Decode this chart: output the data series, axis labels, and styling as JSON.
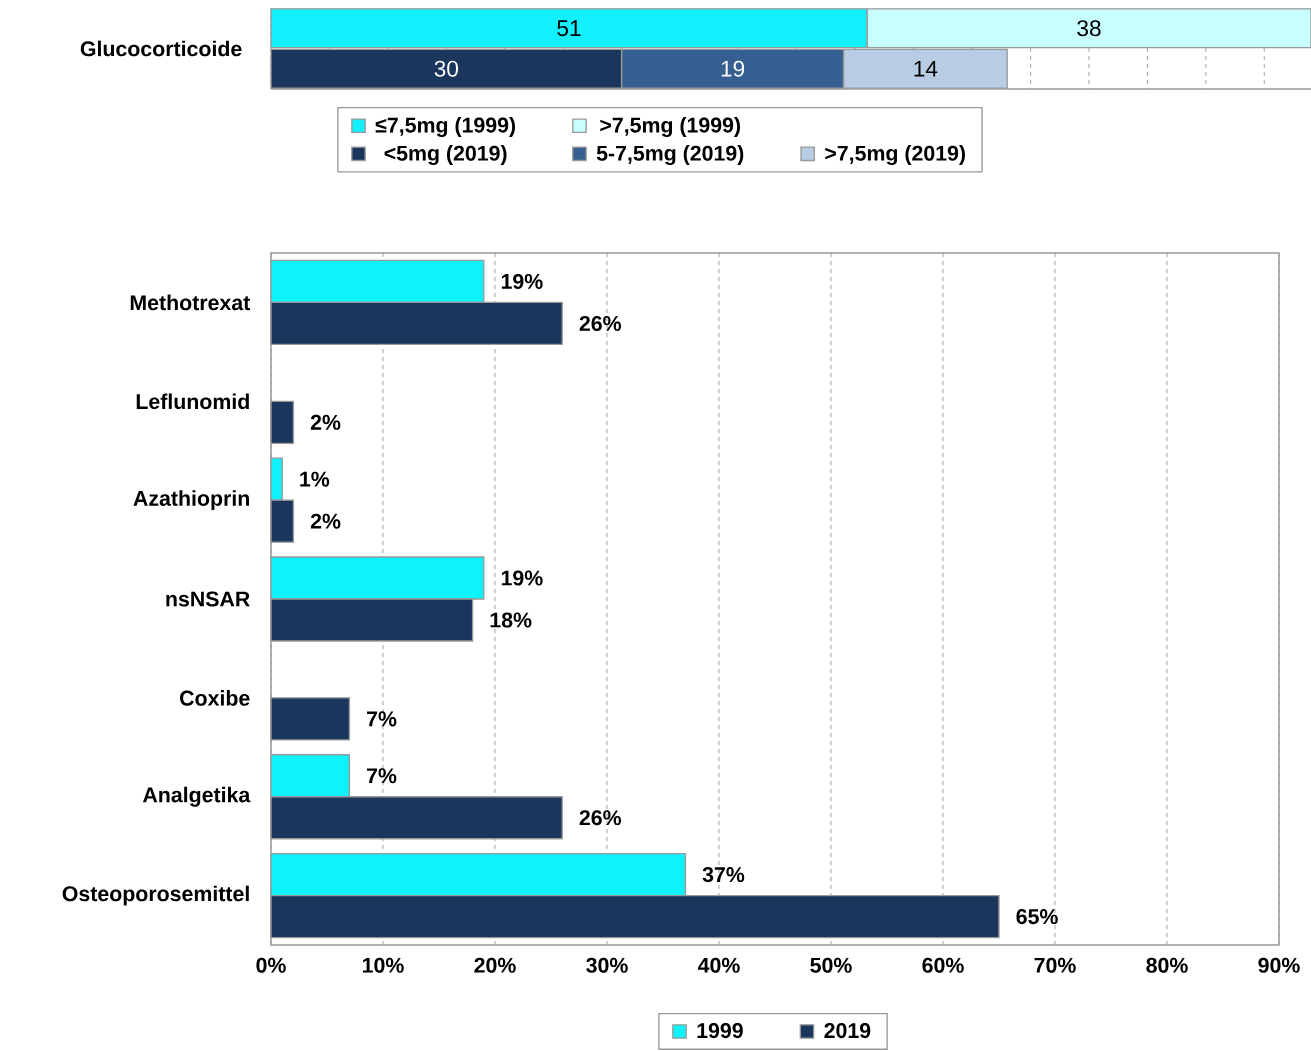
{
  "chart_data": [
    {
      "type": "bar",
      "orientation": "horizontal",
      "stacked": true,
      "ylabel": "Glucocorticoide",
      "categories": [
        null,
        null
      ],
      "series": [
        {
          "name": "≤7,5mg (1999)",
          "color": "#12f0fd",
          "values": [
            51,
            null
          ]
        },
        {
          "name": ">7,5mg (1999)",
          "color": "#c8ffff",
          "values": [
            38,
            null
          ]
        },
        {
          "name": "<5mg (2019)",
          "color": "#1a365d",
          "values": [
            null,
            30
          ]
        },
        {
          "name": "5-7,5mg (2019)",
          "color": "#365f91",
          "values": [
            null,
            19
          ]
        },
        {
          "name": ">7,5mg (2019)",
          "color": "#b8cce4",
          "values": [
            null,
            14
          ]
        }
      ],
      "grid": "x",
      "legend": "bottom",
      "data_labels": true,
      "tick_labels": false
    },
    {
      "type": "bar",
      "orientation": "horizontal",
      "categories": [
        "Methotrexat",
        "Leflunomid",
        "Azathioprin",
        "nsNSAR",
        "Coxibe",
        "Analgetika",
        "Osteoporosemittel"
      ],
      "series": [
        {
          "name": "1999",
          "color": "#0ef2fc",
          "values": [
            19,
            null,
            1,
            19,
            null,
            7,
            37
          ],
          "value_labels": [
            "19%",
            null,
            "1%",
            "19%",
            null,
            "7%",
            "37%"
          ]
        },
        {
          "name": "2019",
          "color": "#1a365d",
          "values": [
            26,
            2,
            2,
            18,
            7,
            26,
            65
          ],
          "value_labels": [
            "26%",
            "2%",
            "2%",
            "18%",
            "7%",
            "26%",
            "65%"
          ]
        }
      ],
      "xlim": [
        0,
        90
      ],
      "xticks": [
        {
          "value": 0,
          "label": "0%"
        },
        {
          "value": 10,
          "label": "10%"
        },
        {
          "value": 20,
          "label": "20%"
        },
        {
          "value": 30,
          "label": "30%"
        },
        {
          "value": 40,
          "label": "40%"
        },
        {
          "value": 50,
          "label": "50%"
        },
        {
          "value": 60,
          "label": "60%"
        },
        {
          "value": 70,
          "label": "70%"
        },
        {
          "value": 80,
          "label": "80%"
        },
        {
          "value": 90,
          "label": "90%"
        }
      ],
      "grid": "x",
      "legend": "bottom"
    }
  ]
}
